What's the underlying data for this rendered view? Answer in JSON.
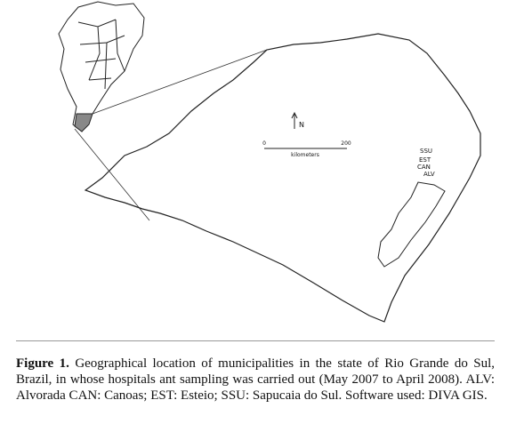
{
  "figure": {
    "map_labels": {
      "north": "N",
      "scale_start": "0",
      "scale_end": "200",
      "scale_unit": "kilometers"
    },
    "municipalities": [
      "SSU",
      "EST",
      "CAN",
      "ALV"
    ],
    "caption": {
      "label": "Figure 1.",
      "text": "Geographical location of municipalities in the state of Rio Grande do Sul, Brazil, in whose hospitals ant sampling was carried out (May 2007 to April 2008). ALV: Alvorada CAN: Canoas; EST: Esteio; SSU: Sapucaia do Sul. Software used: DIVA GIS."
    }
  }
}
